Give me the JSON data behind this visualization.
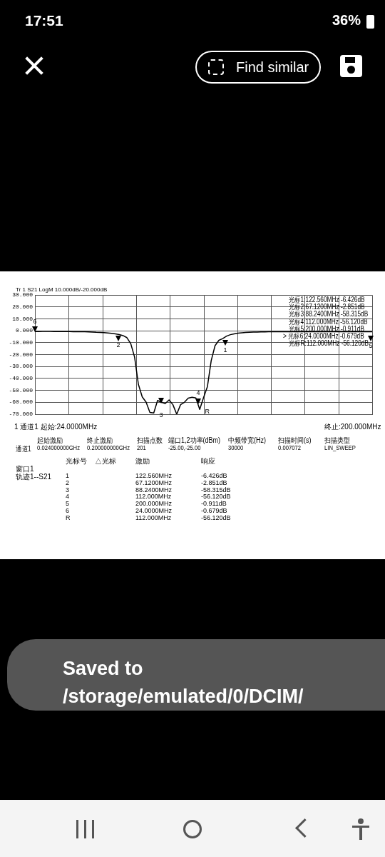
{
  "chart_data": {
    "type": "line",
    "annotations": [
      "Tr 1  S21 LogM 10.000dB/-20.000dB",
      "光标1:122.560MHz -6.426dB",
      "光标2:67.1200MHz -2.851dB",
      "光标3:88.2400MHz -58.315dB",
      "光标4:112.000MHz -56.120dB",
      "光标5:200.000MHz -0.911dB",
      "> 光标6:24.0000MHz -0.679dB",
      "光标R:112.000MHz -56.120dB",
      "1  通道1  起始:24.0000MHz",
      "终止:200.000MHz",
      "起始激励",
      "终止激励",
      "扫描点数",
      "端口1,2功率(dBm)",
      "中频带宽(Hz)",
      "扫描时间(s)",
      "扫描类型",
      "通道1",
      "0.024000000GHz",
      "0.200000000GHz",
      "201",
      "-25.00,-25.00",
      "30000",
      "0.007072",
      "LIN_SWEEP",
      "光标号",
      "△光标",
      "激励",
      "响应",
      "窗口1",
      "轨迹1--S21",
      "1",
      "2",
      "3",
      "4",
      "5",
      "6",
      "R",
      "122.560MHz",
      "67.1200MHz",
      "88.2400MHz",
      "112.000MHz",
      "200.000MHz",
      "24.0000MHz",
      "112.000MHz",
      "-6.426dB",
      "-2.851dB",
      "-58.315dB",
      "-56.120dB",
      "-0.911dB",
      "-0.679dB",
      "-56.120dB",
      "1",
      "2",
      "3",
      "4",
      "5",
      "6",
      "R",
      "17:51",
      "36%",
      "Find similar",
      "Saved to /storage/emulated/0/DCIM/"
    ],
    "categories": [
      null,
      null,
      null,
      null,
      null,
      null,
      null,
      null,
      null,
      null,
      null,
      null,
      null,
      null,
      null,
      null,
      null,
      null,
      null,
      null,
      null,
      null,
      null,
      null,
      null,
      null,
      null,
      null,
      null,
      null,
      null,
      null,
      null,
      null,
      null,
      null,
      null,
      null,
      null,
      null,
      null,
      null,
      null,
      null,
      null,
      null,
      null,
      null,
      null,
      null,
      null,
      null,
      null,
      null,
      null,
      null,
      null,
      null,
      null,
      null,
      null,
      null,
      null,
      null,
      null,
      null,
      null,
      null,
      null,
      null,
      null,
      null,
      null,
      null,
      null,
      null,
      null,
      null,
      null,
      null,
      null,
      null,
      null,
      null,
      null,
      null,
      null,
      null,
      null
    ],
    "series": [
      {
        "color": "#000000",
        "values": [
          -0.68,
          -0.65,
          -0.6,
          -0.6,
          -0.6,
          -0.65,
          -0.65,
          -0.7,
          -0.7,
          -0.75,
          -0.8,
          -0.85,
          -0.9,
          -0.9,
          -1,
          -1.1,
          -1.3,
          -1.4,
          -1.6,
          -1.9,
          -2.2,
          -2.6,
          -3.2,
          -4.1,
          -5.8,
          -10.8,
          -22,
          -45,
          -55.5,
          -59.8,
          -68.5,
          -69,
          -58.5,
          -60,
          -61,
          -58,
          -62,
          -70,
          -62,
          -60,
          -56.5,
          -55.8,
          -56.4,
          -66,
          -56.12,
          -47,
          -25,
          -12.5,
          -8,
          -6.6,
          -4.5,
          -3.3,
          -2.6,
          -2.1,
          -1.8,
          -1.5,
          -1.3,
          -1.2,
          -1.1,
          -1,
          -0.95,
          -0.9,
          -0.9,
          -0.85,
          -0.85,
          -0.85,
          -0.85,
          -0.85,
          -0.85,
          -0.85,
          -0.85,
          -0.85,
          -0.85,
          -0.85,
          -0.9,
          -0.9,
          -0.9,
          -0.9,
          -0.9,
          -0.9,
          -0.9,
          -0.9,
          -0.9,
          -0.9,
          -0.9,
          -0.9,
          -0.9,
          -0.9,
          -0.911
        ]
      }
    ],
    "ylim": [
      -70,
      30
    ],
    "yticks": [
      {
        "value": 30,
        "label": "30.000"
      },
      {
        "value": 20,
        "label": "20.000"
      },
      {
        "value": 10,
        "label": "10.000"
      },
      {
        "value": 0,
        "label": "0.000"
      },
      {
        "value": -10,
        "label": "-10.000"
      },
      {
        "value": -20,
        "label": "-20.000"
      },
      {
        "value": -30,
        "label": "-30.000"
      },
      {
        "value": -40,
        "label": "-40.000"
      },
      {
        "value": -50,
        "label": "-50.000"
      },
      {
        "value": -60,
        "label": "-60.000"
      },
      {
        "value": -70,
        "label": "-70.000"
      }
    ],
    "grid": true,
    "marker": "none",
    "tick_labels": "y"
  }
}
